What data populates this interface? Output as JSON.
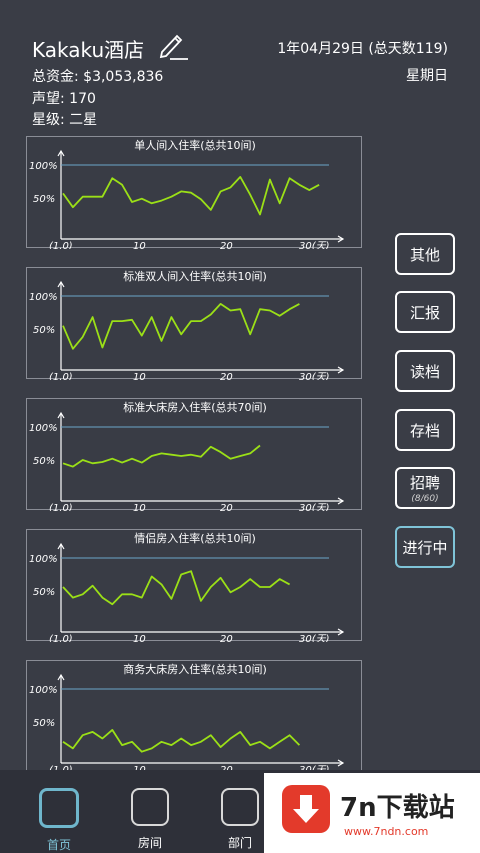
{
  "header": {
    "hotel_name": "Kakaku酒店",
    "funds": "总资金: $3,053,836",
    "reputation": "声望: 170",
    "star": "星级: 二星",
    "date": "1年04月29日 (总天数119)",
    "weekday": "星期日"
  },
  "charts": [
    {
      "title": "单人间入住率(总共10间)",
      "values": [
        0.57,
        0.36,
        0.52,
        0.52,
        0.52,
        0.8,
        0.7,
        0.44,
        0.49,
        0.42,
        0.46,
        0.52,
        0.6,
        0.58,
        0.48,
        0.32,
        0.6,
        0.66,
        0.82,
        0.55,
        0.25,
        0.78,
        0.42,
        0.8,
        0.7,
        0.62,
        0.7
      ]
    },
    {
      "title": "标准双人间入住率(总共10间)",
      "values": [
        0.55,
        0.2,
        0.38,
        0.68,
        0.22,
        0.62,
        0.62,
        0.64,
        0.4,
        0.68,
        0.32,
        0.68,
        0.42,
        0.62,
        0.62,
        0.72,
        0.88,
        0.78,
        0.8,
        0.42,
        0.8,
        0.78,
        0.7,
        0.8,
        0.88
      ]
    },
    {
      "title": "标准大床房入住率(总共70间)",
      "values": [
        0.45,
        0.4,
        0.5,
        0.45,
        0.47,
        0.52,
        0.46,
        0.52,
        0.46,
        0.56,
        0.6,
        0.58,
        0.56,
        0.58,
        0.55,
        0.7,
        0.62,
        0.52,
        0.56,
        0.6,
        0.72
      ]
    },
    {
      "title": "情侣房入住率(总共10间)",
      "values": [
        0.56,
        0.4,
        0.45,
        0.58,
        0.4,
        0.3,
        0.45,
        0.45,
        0.4,
        0.72,
        0.6,
        0.38,
        0.75,
        0.8,
        0.35,
        0.56,
        0.7,
        0.48,
        0.56,
        0.68,
        0.56,
        0.56,
        0.68,
        0.6
      ]
    },
    {
      "title": "商务大床房入住率(总共10间)",
      "values": [
        0.2,
        0.1,
        0.3,
        0.35,
        0.25,
        0.38,
        0.15,
        0.2,
        0.05,
        0.1,
        0.2,
        0.15,
        0.25,
        0.15,
        0.2,
        0.3,
        0.12,
        0.25,
        0.35,
        0.15,
        0.2,
        0.1,
        0.2,
        0.3,
        0.15
      ]
    }
  ],
  "chart_axis": {
    "y_label_100": "100%",
    "y_label_50": "50%",
    "x_start": "(1,0)",
    "x_10": "10",
    "x_20": "20",
    "x_end": "30(天)"
  },
  "side_buttons": {
    "other": "其他",
    "report": "汇报",
    "load": "读档",
    "save": "存档",
    "recruit": "招聘",
    "recruit_count": "(8/60)",
    "running": "进行中"
  },
  "nav": {
    "home": "首页",
    "rooms": "房间",
    "department": "部门"
  },
  "watermark": {
    "title": "7n下载站",
    "url": "www.7ndn.com"
  },
  "colors": {
    "series_line": "#9be017",
    "reference_line": "#6aa6c9",
    "active_accent": "#7fc4d8",
    "background": "#3a3d46"
  }
}
